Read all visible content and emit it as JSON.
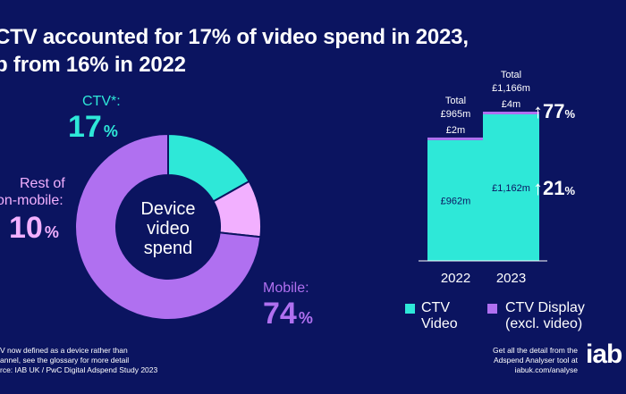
{
  "title": {
    "line1": "CTV accounted for 17% of video spend in 2023,",
    "line2": "p from 16% in 2022"
  },
  "donut": {
    "center_line1": "Device",
    "center_line2": "video",
    "center_line3": "spend",
    "labels": {
      "ctv_name": "CTV*:",
      "ctv_value": "17",
      "rest_name_line1": "Rest of",
      "rest_name_line2": "on-mobile:",
      "rest_value": "10",
      "mobile_name": "Mobile:",
      "mobile_value": "74",
      "percent_symbol": "%"
    }
  },
  "bars": {
    "totals": [
      {
        "line1": "Total",
        "line2": "£965m"
      },
      {
        "line1": "Total",
        "line2": "£1,166m"
      }
    ],
    "display_labels": [
      "£2m",
      "£4m"
    ],
    "video_labels": [
      "£962m",
      "£1,162m"
    ],
    "growth": [
      {
        "arrow": "↑",
        "value": "77",
        "symbol": "%"
      },
      {
        "arrow": "↑",
        "value": "21",
        "symbol": "%"
      }
    ]
  },
  "legend": [
    {
      "line1": "CTV",
      "line2": "Video",
      "color": "#2ee8d8"
    },
    {
      "line1": "CTV Display",
      "line2": "(excl. video)",
      "color": "#b070f0"
    }
  ],
  "footer": {
    "left_line1": "V now defined as a device rather than",
    "left_line2": "annel, see the glossary for more detail",
    "left_line3": "rce: IAB UK / PwC Digital Adspend Study 2023",
    "right_line1": "Get all the detail from the",
    "right_line2": "Adspend Analyser tool at",
    "right_line3": "iabuk.com/analyse",
    "logo": "iab"
  },
  "chart_data": [
    {
      "type": "pie",
      "title": "Device video spend",
      "categories": [
        "CTV*",
        "Rest of non-mobile",
        "Mobile"
      ],
      "values": [
        17,
        10,
        74
      ],
      "unit": "%",
      "colors": [
        "#2ee8d8",
        "#f2b0ff",
        "#b070f0"
      ]
    },
    {
      "type": "bar",
      "stacked": true,
      "categories": [
        "2022",
        "2023"
      ],
      "series": [
        {
          "name": "CTV Video",
          "values": [
            962,
            1162
          ],
          "color": "#2ee8d8"
        },
        {
          "name": "CTV Display (excl. video)",
          "values": [
            2,
            4
          ],
          "color": "#b070f0"
        }
      ],
      "totals": [
        965,
        1166
      ],
      "unit": "£m",
      "ylim": [
        0,
        1166
      ]
    }
  ]
}
